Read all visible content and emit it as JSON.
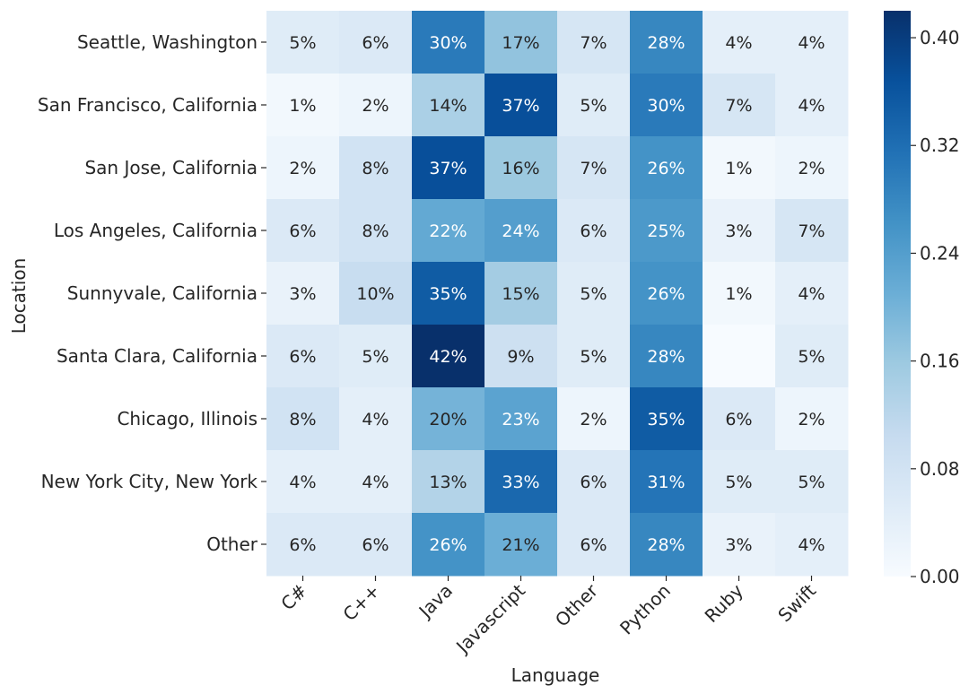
{
  "chart_data": {
    "type": "heatmap",
    "title": "",
    "xlabel": "Language",
    "ylabel": "Location",
    "columns": [
      "C#",
      "C++",
      "Java",
      "Javascript",
      "Other",
      "Python",
      "Ruby",
      "Swift"
    ],
    "rows": [
      "Seattle, Washington",
      "San Francisco, California",
      "San Jose, California",
      "Los Angeles, California",
      "Sunnyvale, California",
      "Santa Clara, California",
      "Chicago, Illinois",
      "New York City, New York",
      "Other"
    ],
    "values": [
      [
        0.05,
        0.06,
        0.3,
        0.17,
        0.07,
        0.28,
        0.04,
        0.04
      ],
      [
        0.01,
        0.02,
        0.14,
        0.37,
        0.05,
        0.3,
        0.07,
        0.04
      ],
      [
        0.02,
        0.08,
        0.37,
        0.16,
        0.07,
        0.26,
        0.01,
        0.02
      ],
      [
        0.06,
        0.08,
        0.22,
        0.24,
        0.06,
        0.25,
        0.03,
        0.07
      ],
      [
        0.03,
        0.1,
        0.35,
        0.15,
        0.05,
        0.26,
        0.01,
        0.04
      ],
      [
        0.06,
        0.05,
        0.42,
        0.09,
        0.05,
        0.28,
        0.0,
        0.05
      ],
      [
        0.08,
        0.04,
        0.2,
        0.23,
        0.02,
        0.35,
        0.06,
        0.02
      ],
      [
        0.04,
        0.04,
        0.13,
        0.33,
        0.06,
        0.31,
        0.05,
        0.05
      ],
      [
        0.06,
        0.06,
        0.26,
        0.21,
        0.06,
        0.28,
        0.03,
        0.04
      ]
    ],
    "labels": [
      [
        "5%",
        "6%",
        "30%",
        "17%",
        "7%",
        "28%",
        "4%",
        "4%"
      ],
      [
        "1%",
        "2%",
        "14%",
        "37%",
        "5%",
        "30%",
        "7%",
        "4%"
      ],
      [
        "2%",
        "8%",
        "37%",
        "16%",
        "7%",
        "26%",
        "1%",
        "2%"
      ],
      [
        "6%",
        "8%",
        "22%",
        "24%",
        "6%",
        "25%",
        "3%",
        "7%"
      ],
      [
        "3%",
        "10%",
        "35%",
        "15%",
        "5%",
        "26%",
        "1%",
        "4%"
      ],
      [
        "6%",
        "5%",
        "42%",
        "9%",
        "5%",
        "28%",
        "",
        "5%"
      ],
      [
        "8%",
        "4%",
        "20%",
        "23%",
        "2%",
        "35%",
        "6%",
        "2%"
      ],
      [
        "4%",
        "4%",
        "13%",
        "33%",
        "6%",
        "31%",
        "5%",
        "5%"
      ],
      [
        "6%",
        "6%",
        "26%",
        "21%",
        "6%",
        "28%",
        "3%",
        "4%"
      ]
    ],
    "colorscale": "Blues",
    "vmin": 0,
    "vmax": 0.42,
    "colorbar_ticks": [
      0.0,
      0.08,
      0.16,
      0.24,
      0.32,
      0.4
    ],
    "colorbar_tick_labels": [
      "0.00",
      "0.08",
      "0.16",
      "0.24",
      "0.32",
      "0.40"
    ],
    "colorbar_position": "right",
    "grid": false
  }
}
